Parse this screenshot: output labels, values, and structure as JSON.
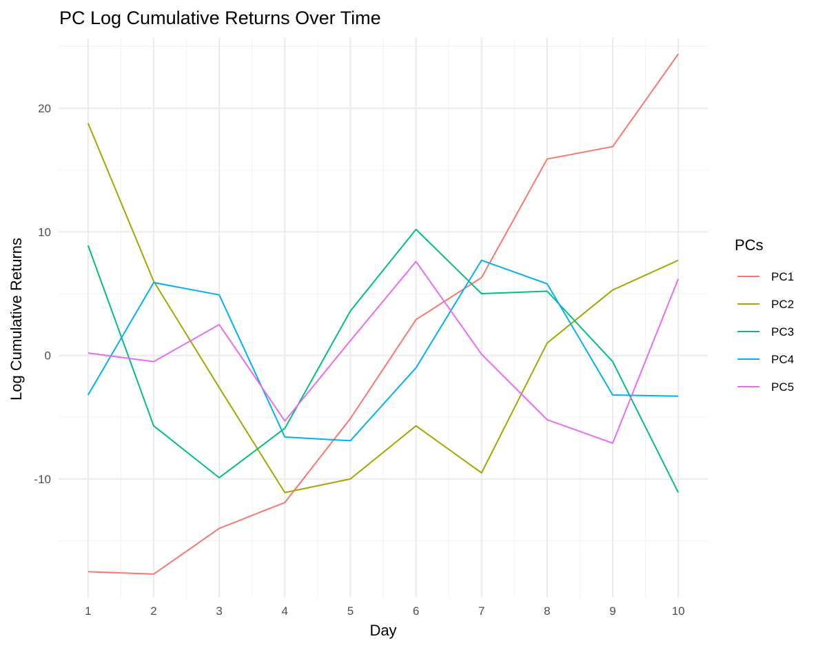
{
  "chart_data": {
    "type": "line",
    "title": "PC Log Cumulative Returns Over Time",
    "xlabel": "Day",
    "ylabel": "Log Cumulative Returns",
    "x": [
      1,
      2,
      3,
      4,
      5,
      6,
      7,
      8,
      9,
      10
    ],
    "xticks": [
      "1",
      "2",
      "3",
      "4",
      "5",
      "6",
      "7",
      "8",
      "9",
      "10"
    ],
    "yticks": [
      "-10",
      "0",
      "10",
      "20"
    ],
    "ytick_values": [
      -10,
      0,
      10,
      20
    ],
    "xlim": [
      0.55,
      10.45
    ],
    "ylim": [
      -19.6,
      25.7
    ],
    "grid": true,
    "legend": {
      "title": "PCs",
      "placement": "right"
    },
    "series": [
      {
        "name": "PC1",
        "color": "#F8766D",
        "values": [
          -17.5,
          -17.7,
          -14.0,
          -11.9,
          -5.1,
          2.9,
          6.3,
          15.9,
          16.9,
          24.4
        ]
      },
      {
        "name": "PC2",
        "color": "#A3A500",
        "values": [
          18.8,
          6.0,
          -2.6,
          -11.1,
          -10.0,
          -5.7,
          -9.5,
          1.0,
          5.3,
          7.7
        ]
      },
      {
        "name": "PC3",
        "color": "#00BF7D",
        "values": [
          8.9,
          -5.7,
          -9.9,
          -5.9,
          3.6,
          10.2,
          5.0,
          5.2,
          -0.5,
          -11.1
        ]
      },
      {
        "name": "PC4",
        "color": "#00B0F6",
        "values": [
          -3.2,
          5.9,
          4.9,
          -6.6,
          -6.9,
          -1.0,
          7.7,
          5.8,
          -3.2,
          -3.3
        ]
      },
      {
        "name": "PC5",
        "color": "#E76BF3",
        "values": [
          0.2,
          -0.5,
          2.5,
          -5.3,
          1.2,
          7.6,
          0.1,
          -5.2,
          -7.1,
          6.2
        ]
      }
    ]
  }
}
